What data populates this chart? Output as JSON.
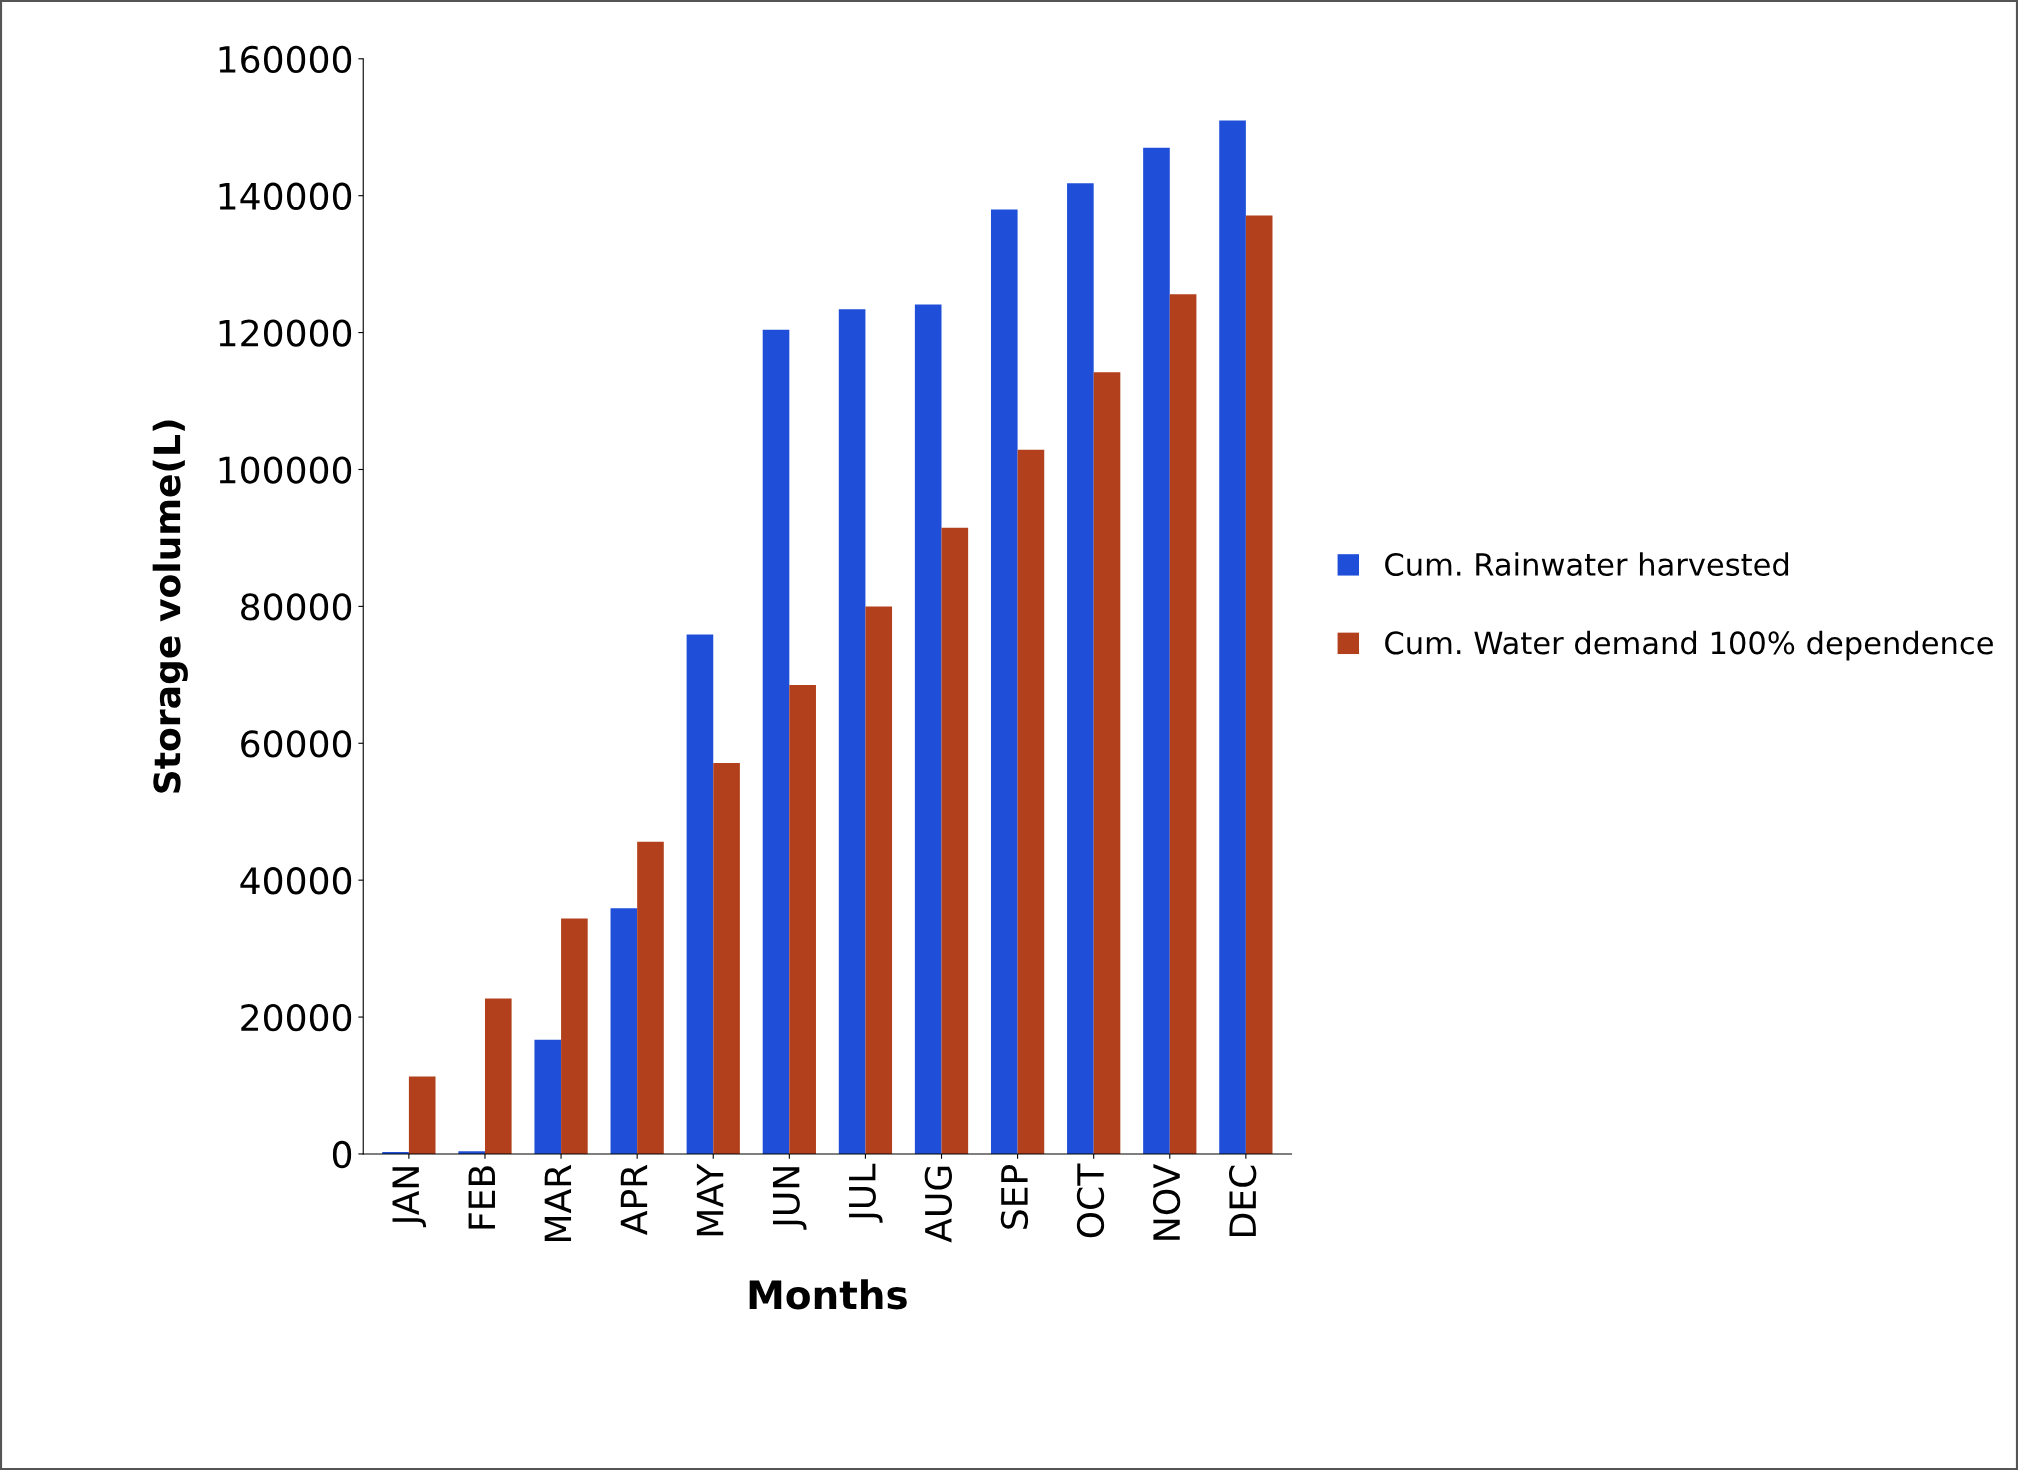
{
  "chart_data": {
    "type": "bar",
    "xlabel": "Months",
    "ylabel": "Storage volume(L)",
    "categories": [
      "JAN",
      "FEB",
      "MAR",
      "APR",
      "MAY",
      "JUN",
      "JUL",
      "AUG",
      "SEP",
      "OCT",
      "NOV",
      "DEC"
    ],
    "series": [
      {
        "name": "Cum. Rainwater harvested",
        "color": "#1f4fd8",
        "values": [
          300,
          400,
          16700,
          35900,
          75900,
          120400,
          123400,
          124100,
          138000,
          141800,
          147000,
          151000
        ]
      },
      {
        "name": "Cum. Water demand 100% dependence",
        "color": "#b2401c",
        "values": [
          11300,
          22700,
          34400,
          45600,
          57100,
          68500,
          80000,
          91500,
          102900,
          114200,
          125600,
          137100
        ]
      }
    ],
    "ylim": [
      0,
      160000
    ],
    "yticks": [
      0,
      20000,
      40000,
      60000,
      80000,
      100000,
      120000,
      140000,
      160000
    ],
    "grid": false,
    "legend": "right"
  }
}
